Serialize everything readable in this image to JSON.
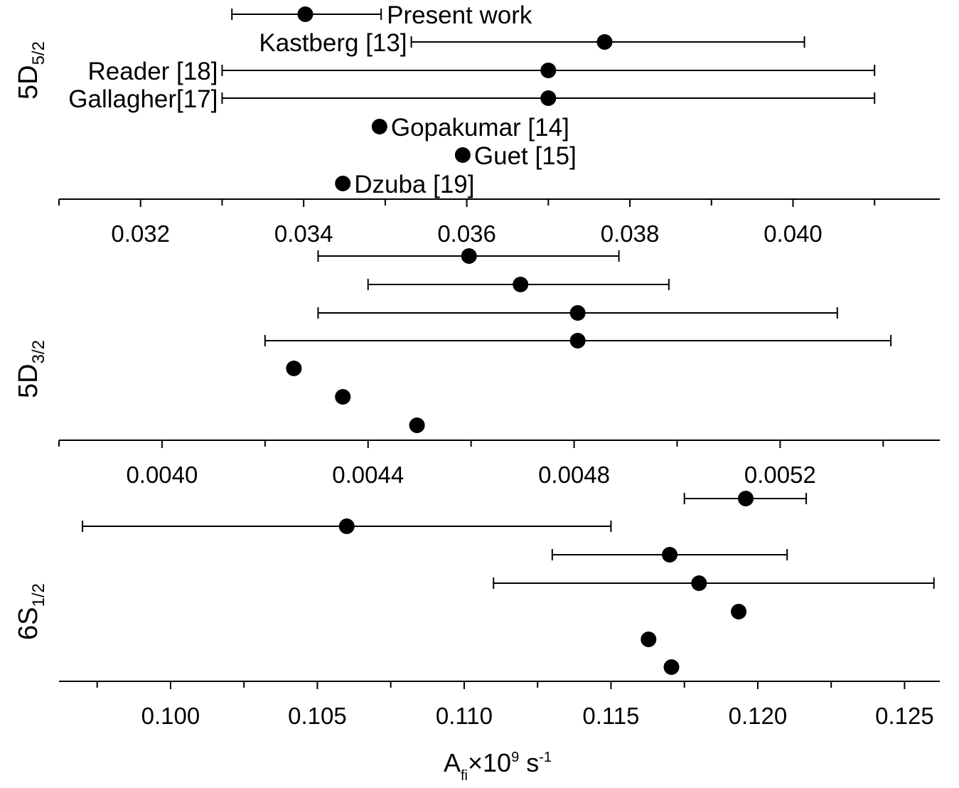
{
  "chart_data": {
    "type": "scatter",
    "xlabel": {
      "main": "A",
      "sub": "fi",
      "suffix": "×10",
      "sup": "9",
      "unit": " s",
      "unit_sup": "-1"
    },
    "sources": [
      "Present work",
      "Kastberg [13]",
      "Reader [18]",
      "Gallagher[17]",
      "Gopakumar [14]",
      "Guet [15]",
      "Dzuba [19]"
    ],
    "panels": [
      {
        "label": {
          "main": "5D",
          "sub": "5/2"
        },
        "xlim": [
          0.031,
          0.0418
        ],
        "major_ticks": [
          0.032,
          0.034,
          0.036,
          0.038,
          0.04
        ],
        "tick_labels": [
          "0.032",
          "0.034",
          "0.036",
          "0.038",
          "0.040"
        ],
        "minor_ticks": [
          0.031,
          0.033,
          0.035,
          0.037,
          0.039,
          0.041
        ],
        "show_labels": true,
        "points": [
          {
            "value": 0.03402,
            "err_low": 0.03312,
            "err_high": 0.03495
          },
          {
            "value": 0.03769,
            "err_low": 0.03532,
            "err_high": 0.04014
          },
          {
            "value": 0.037,
            "err_low": 0.033,
            "err_high": 0.041
          },
          {
            "value": 0.037,
            "err_low": 0.033,
            "err_high": 0.041
          },
          {
            "value": 0.03493
          },
          {
            "value": 0.03595
          },
          {
            "value": 0.03448
          }
        ]
      },
      {
        "label": {
          "main": "5D",
          "sub": "3/2"
        },
        "xlim": [
          0.0038,
          0.00551
        ],
        "major_ticks": [
          0.004,
          0.0044,
          0.0048,
          0.0052
        ],
        "tick_labels": [
          "0.0040",
          "0.0044",
          "0.0048",
          "0.0052"
        ],
        "minor_ticks": [
          0.0038,
          0.0042,
          0.0046,
          0.005,
          0.0054
        ],
        "show_labels": false,
        "points": [
          {
            "value": 0.004596,
            "err_low": 0.004303,
            "err_high": 0.004887
          },
          {
            "value": 0.004696,
            "err_low": 0.0044,
            "err_high": 0.004984
          },
          {
            "value": 0.004807,
            "err_low": 0.004303,
            "err_high": 0.005311
          },
          {
            "value": 0.004807,
            "err_low": 0.0042,
            "err_high": 0.005415
          },
          {
            "value": 0.004256
          },
          {
            "value": 0.004351
          },
          {
            "value": 0.004495
          }
        ]
      },
      {
        "label": {
          "main": "6S",
          "sub": "1/2"
        },
        "xlim": [
          0.0962,
          0.1262
        ],
        "major_ticks": [
          0.1,
          0.105,
          0.11,
          0.115,
          0.12,
          0.125
        ],
        "tick_labels": [
          "0.100",
          "0.105",
          "0.110",
          "0.115",
          "0.120",
          "0.125"
        ],
        "minor_ticks": [
          0.0975,
          0.1025,
          0.1075,
          0.1125,
          0.1175,
          0.1225
        ],
        "show_labels": false,
        "points": [
          {
            "value": 0.11959,
            "err_low": 0.1175,
            "err_high": 0.12165
          },
          {
            "value": 0.106,
            "err_low": 0.097,
            "err_high": 0.115
          },
          {
            "value": 0.117,
            "err_low": 0.113,
            "err_high": 0.121
          },
          {
            "value": 0.118,
            "err_low": 0.111,
            "err_high": 0.126
          },
          {
            "value": 0.11935
          },
          {
            "value": 0.11628
          },
          {
            "value": 0.11706
          }
        ]
      }
    ]
  }
}
